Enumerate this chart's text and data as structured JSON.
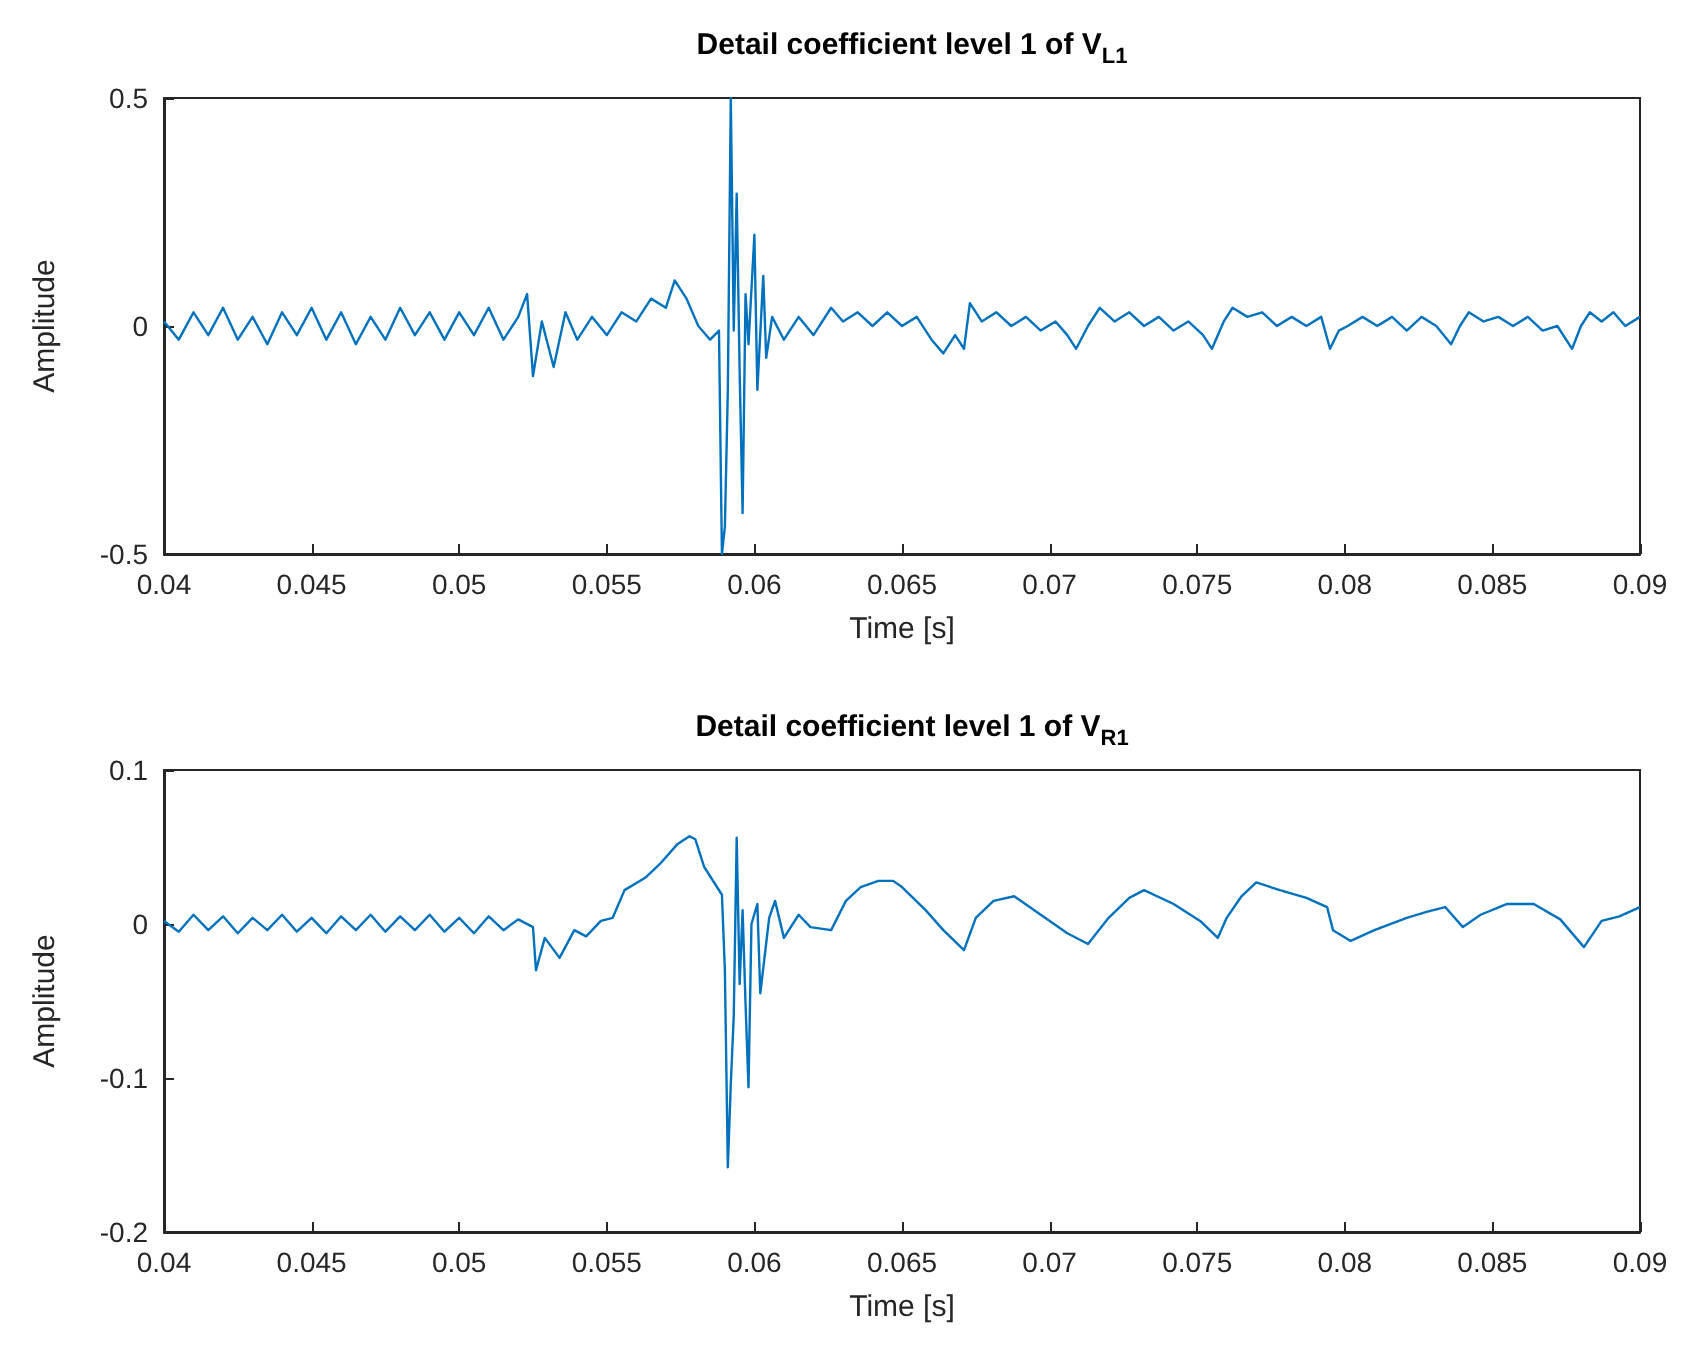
{
  "chart_data": [
    {
      "type": "line",
      "title": "Detail coefficient level 1 of V$_{L1}$",
      "xlabel": "Time [s]",
      "ylabel": "Amplitude",
      "xlim": [
        0.04,
        0.09
      ],
      "xticks": [
        0.04,
        0.045,
        0.05,
        0.055,
        0.06,
        0.065,
        0.07,
        0.075,
        0.08,
        0.085,
        0.09
      ],
      "ylim": [
        -0.5,
        0.5
      ],
      "yticks": [
        -0.5,
        0,
        0.5
      ],
      "grid": false,
      "marker": "none",
      "line_style": "solid",
      "series": [
        {
          "color": "#0072bd",
          "x": [
            0.04,
            0.0405,
            0.041,
            0.0415,
            0.042,
            0.0425,
            0.043,
            0.0435,
            0.044,
            0.0445,
            0.045,
            0.0455,
            0.046,
            0.0465,
            0.047,
            0.0475,
            0.048,
            0.0485,
            0.049,
            0.0495,
            0.05,
            0.0505,
            0.051,
            0.0515,
            0.052,
            0.0523,
            0.0525,
            0.0528,
            0.0532,
            0.0536,
            0.054,
            0.0545,
            0.055,
            0.0555,
            0.056,
            0.0565,
            0.057,
            0.0573,
            0.0577,
            0.0581,
            0.0585,
            0.0588,
            0.0589,
            0.059,
            0.0591,
            0.0592,
            0.0593,
            0.0594,
            0.0595,
            0.0596,
            0.0597,
            0.0598,
            0.06,
            0.0601,
            0.0603,
            0.0604,
            0.0606,
            0.061,
            0.0615,
            0.062,
            0.0626,
            0.063,
            0.0635,
            0.064,
            0.0645,
            0.065,
            0.0655,
            0.066,
            0.0664,
            0.0668,
            0.0671,
            0.0673,
            0.0677,
            0.0682,
            0.0687,
            0.0692,
            0.0697,
            0.0702,
            0.0706,
            0.0709,
            0.0713,
            0.0717,
            0.0722,
            0.0727,
            0.0732,
            0.0737,
            0.0742,
            0.0747,
            0.0752,
            0.0755,
            0.0759,
            0.0762,
            0.0767,
            0.0772,
            0.0777,
            0.0782,
            0.0787,
            0.0792,
            0.0795,
            0.0798,
            0.0801,
            0.0806,
            0.0811,
            0.0816,
            0.0821,
            0.0826,
            0.0831,
            0.0836,
            0.0839,
            0.0842,
            0.0847,
            0.0852,
            0.0857,
            0.0862,
            0.0867,
            0.0872,
            0.0877,
            0.088,
            0.0883,
            0.0887,
            0.0891,
            0.0895,
            0.09
          ],
          "values": [
            0.01,
            -0.03,
            0.03,
            -0.02,
            0.04,
            -0.03,
            0.02,
            -0.04,
            0.03,
            -0.02,
            0.04,
            -0.03,
            0.03,
            -0.04,
            0.02,
            -0.03,
            0.04,
            -0.02,
            0.03,
            -0.03,
            0.03,
            -0.02,
            0.04,
            -0.03,
            0.02,
            0.07,
            -0.11,
            0.01,
            -0.09,
            0.03,
            -0.03,
            0.02,
            -0.02,
            0.03,
            0.01,
            0.06,
            0.04,
            0.1,
            0.06,
            0.0,
            -0.03,
            -0.01,
            -0.5,
            -0.44,
            -0.14,
            0.5,
            -0.01,
            0.29,
            -0.1,
            -0.41,
            0.07,
            -0.04,
            0.2,
            -0.14,
            0.11,
            -0.07,
            0.02,
            -0.03,
            0.02,
            -0.02,
            0.04,
            0.01,
            0.03,
            0.0,
            0.03,
            0.0,
            0.02,
            -0.03,
            -0.06,
            -0.02,
            -0.05,
            0.05,
            0.01,
            0.03,
            0.0,
            0.02,
            -0.01,
            0.01,
            -0.02,
            -0.05,
            0.0,
            0.04,
            0.01,
            0.03,
            0.0,
            0.02,
            -0.01,
            0.01,
            -0.02,
            -0.05,
            0.01,
            0.04,
            0.02,
            0.03,
            0.0,
            0.02,
            0.0,
            0.02,
            -0.05,
            -0.01,
            0.0,
            0.02,
            0.0,
            0.02,
            -0.01,
            0.02,
            0.0,
            -0.04,
            0.0,
            0.03,
            0.01,
            0.02,
            0.0,
            0.02,
            -0.01,
            0.0,
            -0.05,
            0.0,
            0.03,
            0.01,
            0.03,
            0.0,
            0.02
          ]
        }
      ]
    },
    {
      "type": "line",
      "title": "Detail coefficient level 1 of V$_{R1}$",
      "xlabel": "Time [s]",
      "ylabel": "Amplitude",
      "xlim": [
        0.04,
        0.09
      ],
      "xticks": [
        0.04,
        0.045,
        0.05,
        0.055,
        0.06,
        0.065,
        0.07,
        0.075,
        0.08,
        0.085,
        0.09
      ],
      "ylim": [
        -0.2,
        0.1
      ],
      "yticks": [
        -0.2,
        -0.1,
        0,
        0.1
      ],
      "grid": false,
      "marker": "none",
      "line_style": "solid",
      "series": [
        {
          "color": "#0072bd",
          "x": [
            0.04,
            0.0405,
            0.041,
            0.0415,
            0.042,
            0.0425,
            0.043,
            0.0435,
            0.044,
            0.0445,
            0.045,
            0.0455,
            0.046,
            0.0465,
            0.047,
            0.0475,
            0.048,
            0.0485,
            0.049,
            0.0495,
            0.05,
            0.0505,
            0.051,
            0.0515,
            0.052,
            0.0525,
            0.0526,
            0.0529,
            0.0534,
            0.0539,
            0.0543,
            0.0548,
            0.0552,
            0.0556,
            0.0563,
            0.0568,
            0.0574,
            0.0578,
            0.058,
            0.0583,
            0.0589,
            0.059,
            0.0591,
            0.0592,
            0.0593,
            0.0594,
            0.0595,
            0.0596,
            0.0597,
            0.0598,
            0.0599,
            0.0601,
            0.0602,
            0.0605,
            0.0607,
            0.061,
            0.0615,
            0.0619,
            0.0626,
            0.0631,
            0.0636,
            0.0642,
            0.0647,
            0.065,
            0.0658,
            0.0664,
            0.0671,
            0.0675,
            0.0681,
            0.0688,
            0.0697,
            0.0706,
            0.0713,
            0.072,
            0.0727,
            0.0732,
            0.0742,
            0.0751,
            0.0757,
            0.076,
            0.0765,
            0.077,
            0.0778,
            0.0787,
            0.0794,
            0.0796,
            0.0802,
            0.081,
            0.0821,
            0.0828,
            0.0834,
            0.084,
            0.0846,
            0.0855,
            0.0864,
            0.0873,
            0.0881,
            0.0887,
            0.0893,
            0.09
          ],
          "values": [
            0.002,
            -0.005,
            0.006,
            -0.004,
            0.005,
            -0.006,
            0.004,
            -0.004,
            0.006,
            -0.005,
            0.004,
            -0.006,
            0.005,
            -0.004,
            0.006,
            -0.005,
            0.005,
            -0.004,
            0.006,
            -0.005,
            0.004,
            -0.006,
            0.005,
            -0.004,
            0.003,
            -0.002,
            -0.03,
            -0.009,
            -0.022,
            -0.004,
            -0.008,
            0.002,
            0.004,
            0.022,
            0.03,
            0.039,
            0.052,
            0.057,
            0.055,
            0.037,
            0.019,
            -0.03,
            -0.158,
            -0.104,
            -0.06,
            0.056,
            -0.039,
            0.009,
            -0.052,
            -0.106,
            0.0,
            0.013,
            -0.045,
            0.004,
            0.015,
            -0.009,
            0.006,
            -0.002,
            -0.004,
            0.015,
            0.024,
            0.028,
            0.028,
            0.024,
            0.009,
            -0.004,
            -0.017,
            0.004,
            0.015,
            0.018,
            0.006,
            -0.006,
            -0.013,
            0.004,
            0.017,
            0.022,
            0.013,
            0.002,
            -0.009,
            0.004,
            0.018,
            0.027,
            0.022,
            0.017,
            0.011,
            -0.004,
            -0.011,
            -0.004,
            0.004,
            0.008,
            0.011,
            -0.002,
            0.006,
            0.013,
            0.013,
            0.003,
            -0.015,
            0.002,
            0.005,
            0.011
          ]
        }
      ]
    }
  ]
}
